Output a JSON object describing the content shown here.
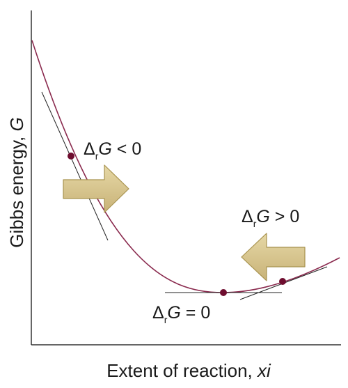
{
  "axes": {
    "y_label": "Gibbs energy, ",
    "y_symbol": "G",
    "x_label": "Extent of reaction, ",
    "x_symbol": "xi"
  },
  "annotations": {
    "left": {
      "delta": "Δ",
      "sub": "r",
      "symbol": "G",
      "relation": " < 0"
    },
    "bottom": {
      "delta": "Δ",
      "sub": "r",
      "symbol": "G",
      "relation": " = 0"
    },
    "right": {
      "delta": "Δ",
      "sub": "r",
      "symbol": "G",
      "relation": " > 0"
    }
  },
  "colors": {
    "curve": "#8a2a4e",
    "point": "#6e0d2f",
    "arrow_fill": "#d4c187",
    "arrow_stroke": "#a8934f",
    "axis": "#333333",
    "tangent": "#222222"
  }
}
